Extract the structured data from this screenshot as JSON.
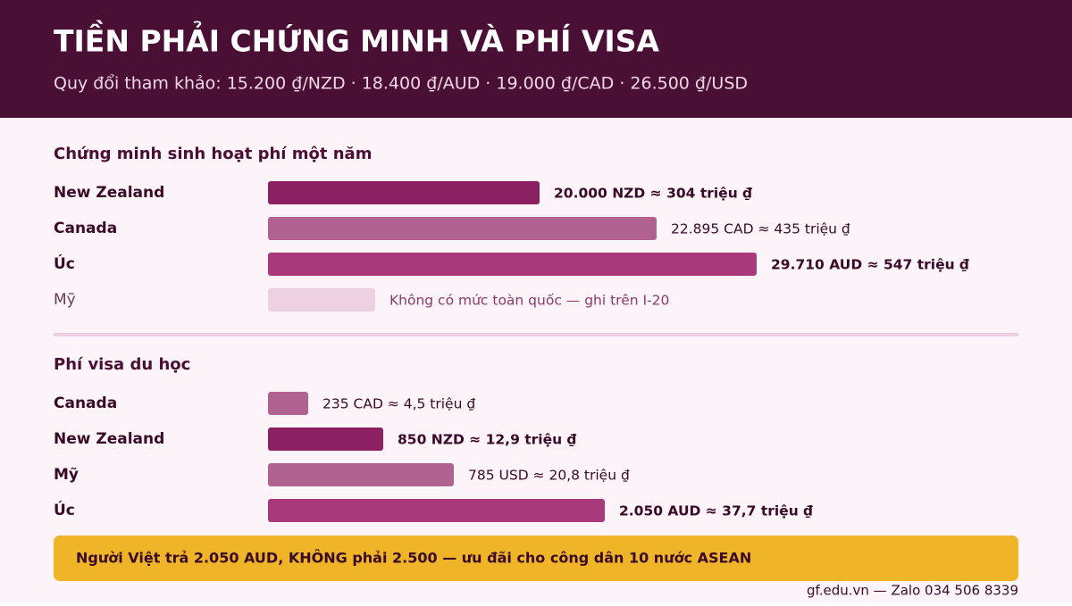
{
  "header": {
    "title": "TIỀN PHẢI CHỨNG MINH VÀ PHÍ VISA",
    "subtitle": "Quy đổi tham khảo: 15.200 ₫/NZD · 18.400 ₫/AUD · 19.000 ₫/CAD · 26.500 ₫/USD"
  },
  "chart_data": [
    {
      "type": "bar",
      "title": "Chứng minh sinh hoạt phí một năm",
      "categories": [
        "New Zealand",
        "Canada",
        "Úc",
        "Mỹ"
      ],
      "values": [
        304,
        435,
        547,
        null
      ],
      "value_labels": [
        "20.000 NZD ≈ 304 triệu ₫",
        "22.895 CAD ≈ 435 triệu ₫",
        "29.710 AUD ≈ 547 triệu ₫",
        "Không có mức toàn quốc — ghi trên I-20"
      ],
      "colors": [
        "#8b2162",
        "#b06391",
        "#a83a7c",
        "#eed1e1"
      ],
      "bold": [
        true,
        false,
        true,
        false
      ]
    },
    {
      "type": "bar",
      "title": "Phí visa du học",
      "categories": [
        "Canada",
        "New Zealand",
        "Mỹ",
        "Úc"
      ],
      "values": [
        4.5,
        12.9,
        20.8,
        37.7
      ],
      "value_labels": [
        "235 CAD ≈ 4,5 triệu ₫",
        "850 NZD ≈ 12,9 triệu ₫",
        "785 USD ≈ 20,8 triệu ₫",
        "2.050 AUD ≈ 37,7 triệu ₫"
      ],
      "colors": [
        "#b06391",
        "#8b2162",
        "#b06391",
        "#a83a7c"
      ],
      "bold": [
        false,
        true,
        false,
        true
      ]
    }
  ],
  "callout": "Người Việt trả 2.050 AUD, KHÔNG phải 2.500 — ưu đãi cho công dân 10 nước ASEAN",
  "footer": "gf.edu.vn — Zalo 034 506 8339"
}
